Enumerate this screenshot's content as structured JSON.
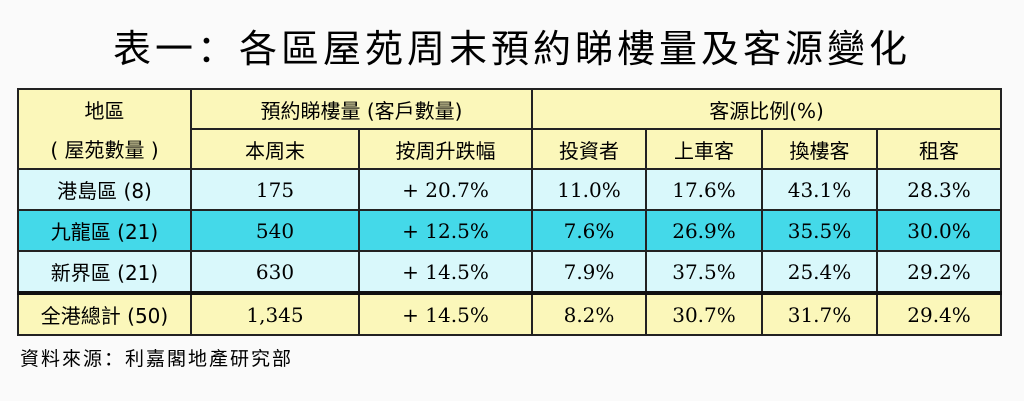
{
  "title": "表一：各區屋苑周末預約睇樓量及客源變化",
  "table": {
    "header": {
      "region_label_1": "地區",
      "region_label_2": "( 屋苑數量 )",
      "booking_group": "預約睇樓量 (客戶數量)",
      "source_group": "客源比例(%)",
      "this_weekend": "本周末",
      "weekly_change": "按周升跌幅",
      "investor": "投資者",
      "first_time": "上車客",
      "upgrader": "換樓客",
      "renter": "租客"
    },
    "rows": [
      {
        "region": "港島區 (8)",
        "this_weekend": "175",
        "weekly_change": "+ 20.7%",
        "investor": "11.0%",
        "first_time": "17.6%",
        "upgrader": "43.1%",
        "renter": "28.3%"
      },
      {
        "region": "九龍區 (21)",
        "this_weekend": "540",
        "weekly_change": "+ 12.5%",
        "investor": "7.6%",
        "first_time": "26.9%",
        "upgrader": "35.5%",
        "renter": "30.0%"
      },
      {
        "region": "新界區 (21)",
        "this_weekend": "630",
        "weekly_change": "+ 14.5%",
        "investor": "7.9%",
        "first_time": "37.5%",
        "upgrader": "25.4%",
        "renter": "29.2%"
      }
    ],
    "total": {
      "region": "全港總計 (50)",
      "this_weekend": "1,345",
      "weekly_change": "+ 14.5%",
      "investor": "8.2%",
      "first_time": "30.7%",
      "upgrader": "31.7%",
      "renter": "29.4%"
    }
  },
  "footnote": "資料來源：利嘉閣地產研究部",
  "colors": {
    "header_bg": "#fbf7ba",
    "row_light_bg": "#d9f8fb",
    "row_highlight_bg": "#44d9e9"
  }
}
